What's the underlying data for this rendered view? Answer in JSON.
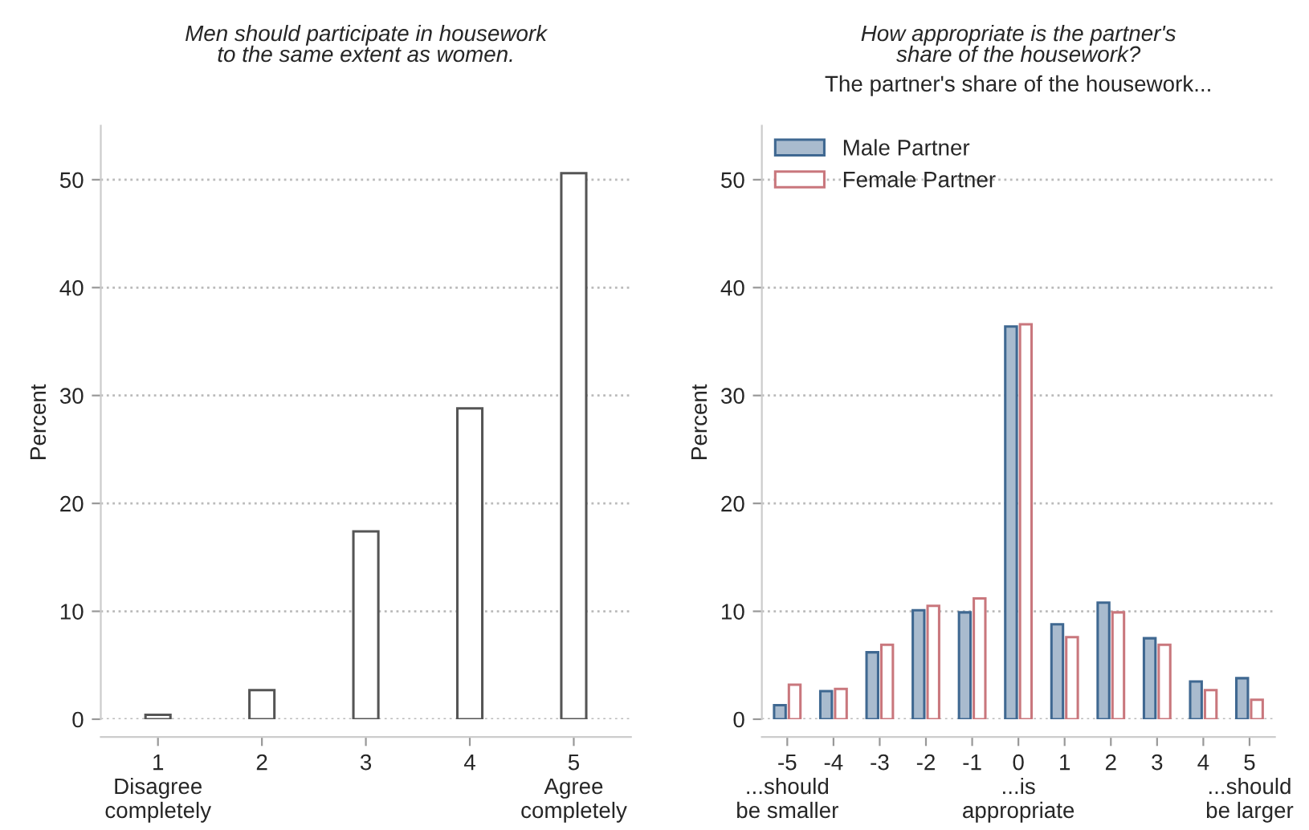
{
  "chart_data": [
    {
      "type": "bar",
      "title": "Men should participate in housework\nto the same extent as women.",
      "ylabel": "Percent",
      "categories": [
        "1\nDisagree\ncompletely",
        "2",
        "3",
        "4",
        "5\nAgree\ncompletely"
      ],
      "values": [
        0.4,
        2.7,
        17.4,
        28.8,
        50.6
      ],
      "color": "#555555",
      "ylim": [
        0,
        55
      ],
      "yticks": [
        0,
        10,
        20,
        30,
        40,
        50
      ],
      "grid": "y",
      "legend": false
    },
    {
      "type": "bar",
      "title": "How appropriate is the partner's\nshare of the housework?",
      "subtitle": "The partner's share of the housework...",
      "ylabel": "Percent",
      "categories": [
        "-5\n...should\nbe smaller",
        "-4",
        "-3",
        "-2",
        "-1",
        "0\n...is\nappropriate",
        "1",
        "2",
        "3",
        "4",
        "5\n...should\nbe larger"
      ],
      "series": [
        {
          "name": "Male Partner",
          "color": "#3f6891",
          "values": [
            1.3,
            2.6,
            6.2,
            10.1,
            9.9,
            36.4,
            8.8,
            10.8,
            7.5,
            3.5,
            3.8
          ]
        },
        {
          "name": "Female Partner",
          "color": "#c9777d",
          "values": [
            3.2,
            2.8,
            6.9,
            10.5,
            11.2,
            36.6,
            7.6,
            9.9,
            6.9,
            2.7,
            1.8
          ]
        }
      ],
      "ylim": [
        0,
        55
      ],
      "yticks": [
        0,
        10,
        20,
        30,
        40,
        50
      ],
      "grid": "y",
      "legend": "top left"
    }
  ]
}
